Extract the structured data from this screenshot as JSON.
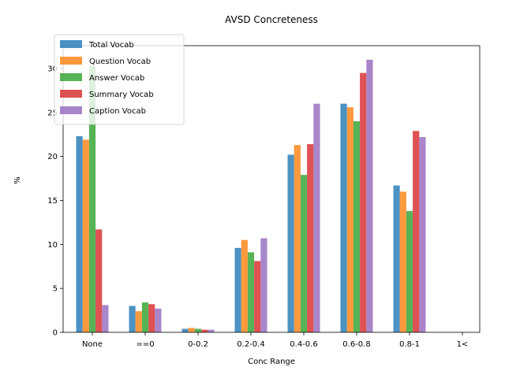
{
  "chart_data": {
    "type": "bar",
    "title": "AVSD Concreteness",
    "xlabel": "Conc Range",
    "ylabel": "%",
    "categories": [
      "None",
      "==0",
      "0-0.2",
      "0.2-0.4",
      "0.4-0.6",
      "0.6-0.8",
      "0.8-1",
      "1<"
    ],
    "yticks": [
      0,
      5,
      10,
      15,
      20,
      25,
      30
    ],
    "ylim": [
      0,
      32.6
    ],
    "grid": false,
    "legend_position": "upper-left",
    "series": [
      {
        "name": "Total Vocab",
        "color": "#1f77b4",
        "values": [
          22.3,
          3.0,
          0.4,
          9.6,
          20.2,
          26.0,
          16.7,
          0
        ]
      },
      {
        "name": "Question Vocab",
        "color": "#ff7f0e",
        "values": [
          21.9,
          2.4,
          0.5,
          10.5,
          21.3,
          25.6,
          16.0,
          0
        ]
      },
      {
        "name": "Answer Vocab",
        "color": "#2ca02c",
        "values": [
          30.3,
          3.4,
          0.4,
          9.1,
          17.9,
          24.0,
          13.8,
          0
        ]
      },
      {
        "name": "Summary Vocab",
        "color": "#d62728",
        "values": [
          11.7,
          3.2,
          0.3,
          8.1,
          21.4,
          29.5,
          22.9,
          0
        ]
      },
      {
        "name": "Caption Vocab",
        "color": "#9467bd",
        "values": [
          3.1,
          2.7,
          0.3,
          10.7,
          26.0,
          31.0,
          22.2,
          0
        ]
      }
    ]
  }
}
